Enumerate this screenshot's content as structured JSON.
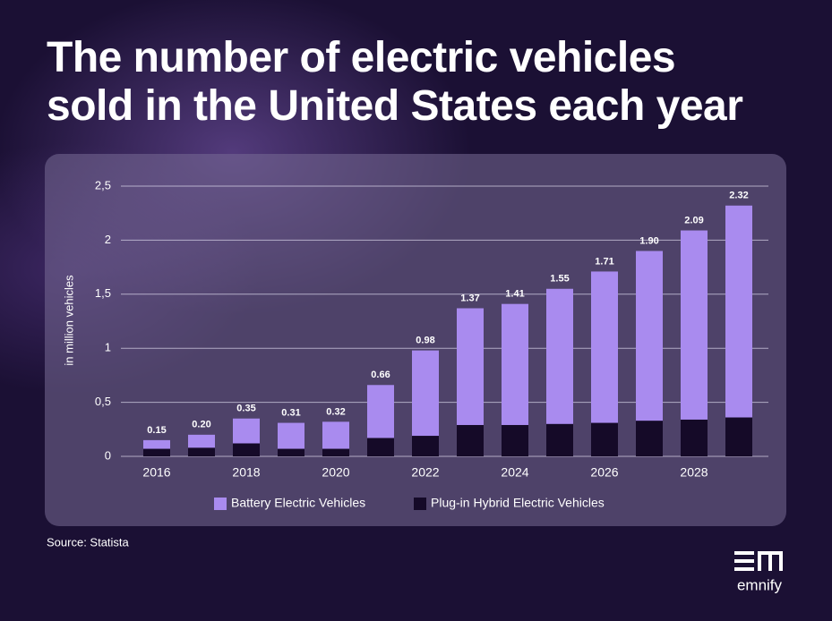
{
  "chart_data": {
    "type": "stacked-bar",
    "title": "The number of electric vehicles\nsold in the United States each year",
    "y_label": "in million vehicles",
    "categories": [
      "2016",
      null,
      "2018",
      null,
      "2020",
      null,
      "2022",
      null,
      "2024",
      null,
      "2026",
      null,
      "2028",
      null
    ],
    "series": [
      {
        "name": "Battery Electric Vehicles",
        "color": "#a98bef",
        "values": [
          0.08,
          0.12,
          0.23,
          0.24,
          0.25,
          0.49,
          0.79,
          1.08,
          1.12,
          1.25,
          1.4,
          1.57,
          1.75,
          1.96
        ]
      },
      {
        "name": "Plug-in Hybrid Electric Vehicles",
        "color": "#150a28",
        "values": [
          0.07,
          0.08,
          0.12,
          0.07,
          0.07,
          0.17,
          0.19,
          0.29,
          0.29,
          0.3,
          0.31,
          0.33,
          0.34,
          0.36
        ]
      }
    ],
    "totals": [
      0.15,
      0.2,
      0.35,
      0.31,
      0.32,
      0.66,
      0.98,
      1.37,
      1.41,
      1.55,
      1.71,
      1.9,
      2.09,
      2.32
    ],
    "total_labels": [
      "0.15",
      "0.20",
      "0.35",
      "0.31",
      "0.32",
      "0.66",
      "0.98",
      "1.37",
      "1.41",
      "1.55",
      "1.71",
      "1.90",
      "2.09",
      "2.32"
    ],
    "ylim": [
      0,
      2.5
    ],
    "yticks": [
      0,
      {
        "value": 0.5,
        "label": "0,5"
      },
      1,
      {
        "value": 1.5,
        "label": "1,5"
      },
      2,
      {
        "value": 2.5,
        "label": "2,5"
      }
    ],
    "grid": true,
    "legend": "bottom"
  },
  "source": "Source: Statista",
  "logo": {
    "text": "emnify"
  }
}
